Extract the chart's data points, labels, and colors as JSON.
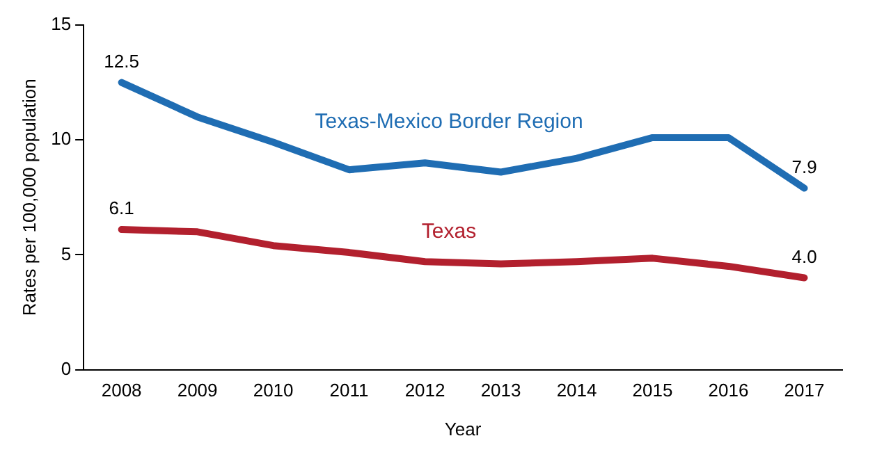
{
  "chart_data": {
    "type": "line",
    "xlabel": "Year",
    "ylabel": "Rates per 100,000 population",
    "categories": [
      "2008",
      "2009",
      "2010",
      "2011",
      "2012",
      "2013",
      "2014",
      "2015",
      "2016",
      "2017"
    ],
    "series": [
      {
        "name": "Texas-Mexico Border Region",
        "color": "#1f6db3",
        "values": [
          12.5,
          11.0,
          9.9,
          8.7,
          9.0,
          8.6,
          9.2,
          10.1,
          10.1,
          7.9
        ],
        "value_labels": [
          "12.5",
          null,
          null,
          null,
          null,
          null,
          null,
          null,
          null,
          "7.9"
        ]
      },
      {
        "name": "Texas",
        "color": "#b2202e",
        "values": [
          6.1,
          6.0,
          5.4,
          5.1,
          4.7,
          4.6,
          4.7,
          4.85,
          4.5,
          4.0
        ],
        "value_labels": [
          "6.1",
          null,
          null,
          null,
          null,
          null,
          null,
          null,
          null,
          "4.0"
        ]
      }
    ],
    "ylim": [
      0,
      15
    ],
    "yticks": [
      0,
      5,
      10,
      15
    ],
    "grid": false,
    "legend": false,
    "marker": "none",
    "line_style": "solid"
  }
}
